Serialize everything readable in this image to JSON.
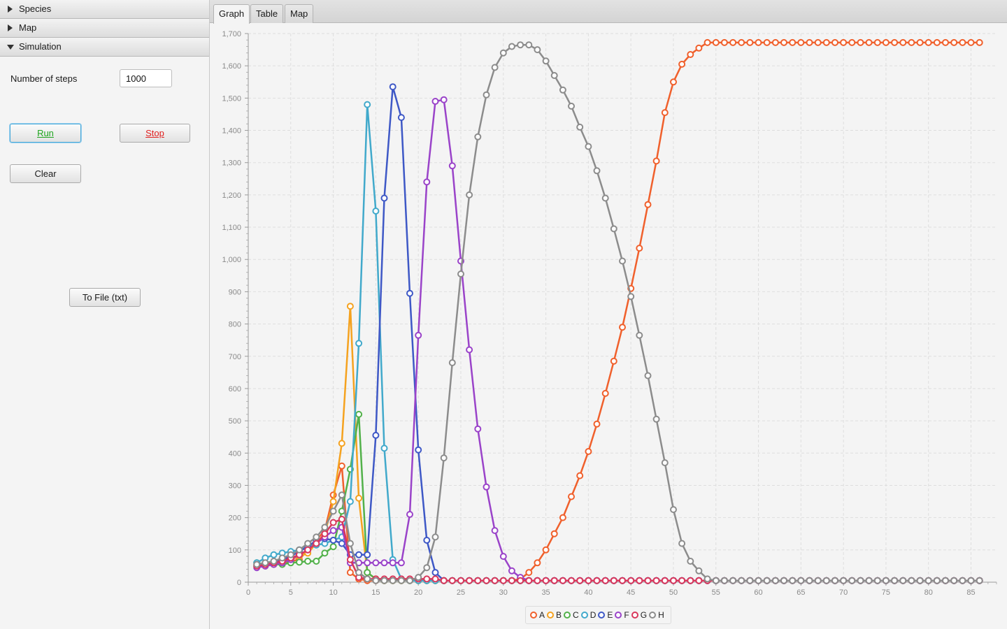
{
  "sidebar": {
    "sections": [
      {
        "label": "Species",
        "expanded": false
      },
      {
        "label": "Map",
        "expanded": false
      },
      {
        "label": "Simulation",
        "expanded": true
      }
    ],
    "simulation": {
      "steps_label": "Number of steps",
      "steps_value": "1000",
      "run_label": "Run",
      "stop_label": "Stop",
      "clear_label": "Clear",
      "tofile_label": "To File (txt)"
    }
  },
  "tabs": [
    {
      "label": "Graph",
      "active": true
    },
    {
      "label": "Table",
      "active": false
    },
    {
      "label": "Map",
      "active": false
    }
  ],
  "chart_data": {
    "type": "line",
    "title": "",
    "xlabel": "",
    "ylabel": "",
    "xlim": [
      0,
      88
    ],
    "ylim": [
      0,
      1700
    ],
    "xticks": [
      0,
      5,
      10,
      15,
      20,
      25,
      30,
      35,
      40,
      45,
      50,
      55,
      60,
      65,
      70,
      75,
      80,
      85
    ],
    "yticks": [
      0,
      100,
      200,
      300,
      400,
      500,
      600,
      700,
      800,
      900,
      1000,
      1100,
      1200,
      1300,
      1400,
      1500,
      1600,
      1700
    ],
    "ytick_labels": [
      "0",
      "100",
      "200",
      "300",
      "400",
      "500",
      "600",
      "700",
      "800",
      "900",
      "1,000",
      "1,100",
      "1,200",
      "1,300",
      "1,400",
      "1,500",
      "1,600",
      "1,700"
    ],
    "grid": true,
    "legend_position": "bottom",
    "x_start": 1,
    "x_end": 86,
    "series": [
      {
        "name": "A",
        "color": "#f0602c",
        "values": [
          55,
          50,
          55,
          60,
          65,
          70,
          100,
          130,
          160,
          270,
          360,
          30,
          10,
          5,
          5,
          5,
          5,
          5,
          5,
          5,
          5,
          5,
          5,
          5,
          5,
          5,
          5,
          5,
          5,
          5,
          5,
          10,
          30,
          60,
          100,
          150,
          200,
          265,
          330,
          405,
          490,
          585,
          685,
          790,
          910,
          1035,
          1170,
          1305,
          1455,
          1550,
          1605,
          1635,
          1655,
          1672,
          1672,
          1672,
          1672,
          1672,
          1672,
          1672,
          1672,
          1672,
          1672,
          1672,
          1672,
          1672,
          1672,
          1672,
          1672,
          1672,
          1672,
          1672,
          1672,
          1672,
          1672,
          1672,
          1672,
          1672,
          1672,
          1672,
          1672,
          1672,
          1672,
          1672,
          1672,
          1672
        ]
      },
      {
        "name": "B",
        "color": "#f5a21f",
        "values": [
          50,
          55,
          60,
          65,
          70,
          80,
          90,
          120,
          150,
          250,
          430,
          855,
          260,
          30,
          10,
          5,
          5,
          5,
          5,
          5,
          5,
          5,
          5,
          5,
          5,
          5,
          5,
          5,
          5,
          5,
          5,
          5,
          5,
          5,
          5,
          5,
          5,
          5,
          5,
          5,
          5,
          5,
          5,
          5,
          5,
          5,
          5,
          5,
          5,
          5,
          5,
          5,
          5,
          5,
          5,
          5,
          5,
          5,
          5,
          5,
          5,
          5,
          5,
          5,
          5,
          5,
          5,
          5,
          5,
          5,
          5,
          5,
          5,
          5,
          5,
          5,
          5,
          5,
          5,
          5,
          5,
          5,
          5,
          5,
          5,
          5
        ]
      },
      {
        "name": "C",
        "color": "#52b14a",
        "values": [
          60,
          55,
          55,
          55,
          60,
          62,
          65,
          65,
          90,
          110,
          220,
          350,
          520,
          30,
          10,
          5,
          5,
          5,
          5,
          5,
          5,
          5,
          5,
          5,
          5,
          5,
          5,
          5,
          5,
          5,
          5,
          5,
          5,
          5,
          5,
          5,
          5,
          5,
          5,
          5,
          5,
          5,
          5,
          5,
          5,
          5,
          5,
          5,
          5,
          5,
          5,
          5,
          5,
          5,
          5,
          5,
          5,
          5,
          5,
          5,
          5,
          5,
          5,
          5,
          5,
          5,
          5,
          5,
          5,
          5,
          5,
          5,
          5,
          5,
          5,
          5,
          5,
          5,
          5,
          5,
          5,
          5,
          5,
          5,
          5,
          5
        ]
      },
      {
        "name": "D",
        "color": "#41a9cb",
        "values": [
          60,
          75,
          85,
          90,
          95,
          100,
          110,
          115,
          120,
          130,
          140,
          250,
          740,
          1480,
          1150,
          415,
          70,
          10,
          5,
          5,
          5,
          5,
          5,
          5,
          5,
          5,
          5,
          5,
          5,
          5,
          5,
          5,
          5,
          5,
          5,
          5,
          5,
          5,
          5,
          5,
          5,
          5,
          5,
          5,
          5,
          5,
          5,
          5,
          5,
          5,
          5,
          5,
          5,
          5,
          5,
          5,
          5,
          5,
          5,
          5,
          5,
          5,
          5,
          5,
          5,
          5,
          5,
          5,
          5,
          5,
          5,
          5,
          5,
          5,
          5,
          5,
          5,
          5,
          5,
          5,
          5,
          5,
          5,
          5,
          5,
          5
        ]
      },
      {
        "name": "E",
        "color": "#3e58c6",
        "values": [
          50,
          55,
          60,
          70,
          80,
          95,
          110,
          130,
          135,
          130,
          120,
          85,
          85,
          85,
          455,
          1190,
          1535,
          1440,
          895,
          410,
          130,
          30,
          5,
          5,
          5,
          5,
          5,
          5,
          5,
          5,
          5,
          5,
          5,
          5,
          5,
          5,
          5,
          5,
          5,
          5,
          5,
          5,
          5,
          5,
          5,
          5,
          5,
          5,
          5,
          5,
          5,
          5,
          5,
          5,
          5,
          5,
          5,
          5,
          5,
          5,
          5,
          5,
          5,
          5,
          5,
          5,
          5,
          5,
          5,
          5,
          5,
          5,
          5,
          5,
          5,
          5,
          5,
          5,
          5,
          5,
          5,
          5,
          5,
          5,
          5,
          5
        ]
      },
      {
        "name": "F",
        "color": "#9a43c9",
        "values": [
          45,
          50,
          55,
          60,
          70,
          85,
          100,
          120,
          140,
          160,
          170,
          60,
          60,
          60,
          60,
          60,
          60,
          60,
          210,
          765,
          1240,
          1490,
          1495,
          1290,
          995,
          720,
          475,
          295,
          160,
          80,
          35,
          15,
          5,
          5,
          5,
          5,
          5,
          5,
          5,
          5,
          5,
          5,
          5,
          5,
          5,
          5,
          5,
          5,
          5,
          5,
          5,
          5,
          5,
          5,
          5,
          5,
          5,
          5,
          5,
          5,
          5,
          5,
          5,
          5,
          5,
          5,
          5,
          5,
          5,
          5,
          5,
          5,
          5,
          5,
          5,
          5,
          5,
          5,
          5,
          5,
          5,
          5,
          5,
          5,
          5,
          5
        ]
      },
      {
        "name": "G",
        "color": "#d9375b",
        "values": [
          50,
          55,
          60,
          65,
          75,
          85,
          100,
          120,
          150,
          185,
          195,
          70,
          15,
          10,
          10,
          10,
          10,
          10,
          10,
          10,
          10,
          10,
          5,
          5,
          5,
          5,
          5,
          5,
          5,
          5,
          5,
          5,
          5,
          5,
          5,
          5,
          5,
          5,
          5,
          5,
          5,
          5,
          5,
          5,
          5,
          5,
          5,
          5,
          5,
          5,
          5,
          5,
          5,
          5,
          5,
          5,
          5,
          5,
          5,
          5,
          5,
          5,
          5,
          5,
          5,
          5,
          5,
          5,
          5,
          5,
          5,
          5,
          5,
          5,
          5,
          5,
          5,
          5,
          5,
          5,
          5,
          5,
          5,
          5,
          5,
          5
        ]
      },
      {
        "name": "H",
        "color": "#8c8c8c",
        "values": [
          55,
          60,
          65,
          75,
          85,
          100,
          120,
          140,
          170,
          220,
          270,
          120,
          30,
          10,
          5,
          5,
          5,
          5,
          5,
          15,
          45,
          140,
          385,
          680,
          955,
          1200,
          1380,
          1510,
          1595,
          1640,
          1660,
          1665,
          1665,
          1650,
          1615,
          1570,
          1525,
          1475,
          1410,
          1350,
          1275,
          1190,
          1095,
          995,
          885,
          765,
          640,
          505,
          370,
          225,
          120,
          65,
          35,
          10,
          5,
          5,
          5,
          5,
          5,
          5,
          5,
          5,
          5,
          5,
          5,
          5,
          5,
          5,
          5,
          5,
          5,
          5,
          5,
          5,
          5,
          5,
          5,
          5,
          5,
          5,
          5,
          5,
          5,
          5,
          5,
          5
        ]
      }
    ]
  }
}
